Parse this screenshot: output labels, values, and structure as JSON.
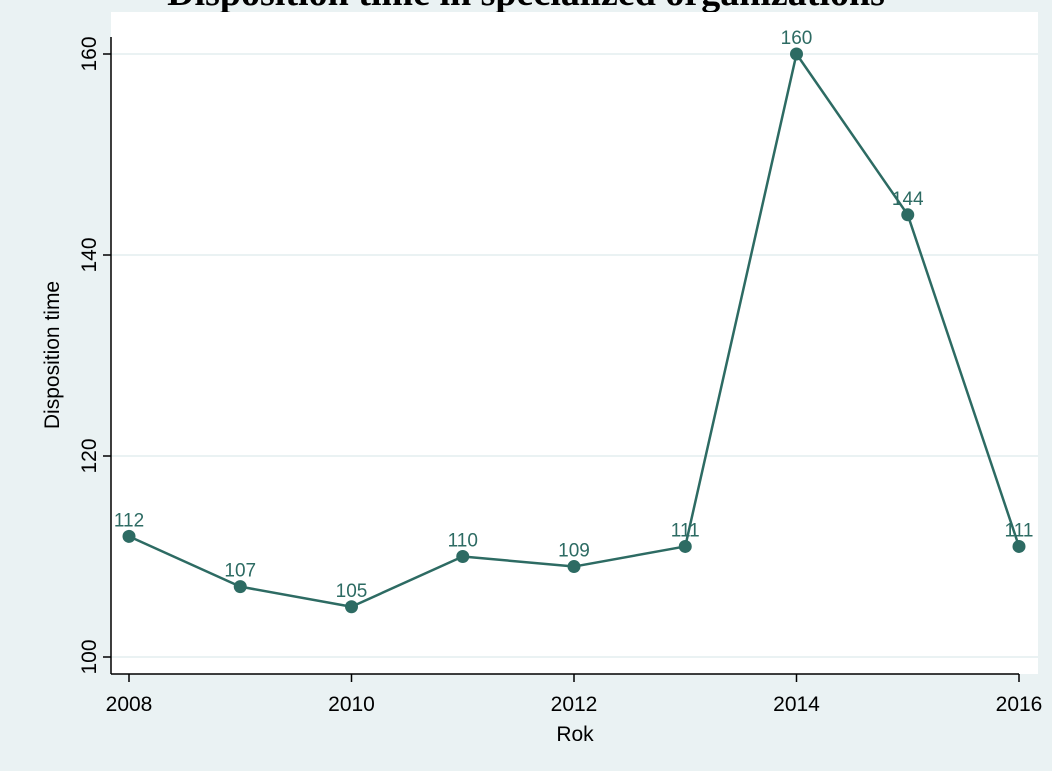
{
  "chart_data": {
    "type": "line",
    "title": "Disposition time in specialized organizations",
    "xlabel": "Rok",
    "ylabel": "Disposition time",
    "x": [
      2008,
      2009,
      2010,
      2011,
      2012,
      2013,
      2014,
      2015,
      2016
    ],
    "series": [
      {
        "values": [
          112,
          107,
          105,
          110,
          109,
          111,
          160,
          144,
          111
        ],
        "data_labels": [
          "112",
          "107",
          "105",
          "110",
          "109",
          "111",
          "160",
          "144",
          "111"
        ]
      }
    ],
    "xticks": [
      2008,
      2010,
      2012,
      2014,
      2016
    ],
    "xtick_labels": [
      "2008",
      "2010",
      "2012",
      "2014",
      "2016"
    ],
    "yticks": [
      100,
      120,
      140,
      160
    ],
    "ytick_labels": [
      "100",
      "120",
      "140",
      "160"
    ],
    "xlim": [
      2008,
      2016
    ],
    "ylim": [
      100,
      160
    ],
    "grid": true,
    "legend": "none",
    "colors": {
      "series": "#2d6b63",
      "label": "#2d6b63",
      "background": "#eaf2f3",
      "plot": "#ffffff",
      "gridline": "#eaf2f3",
      "axis": "#000000"
    }
  }
}
